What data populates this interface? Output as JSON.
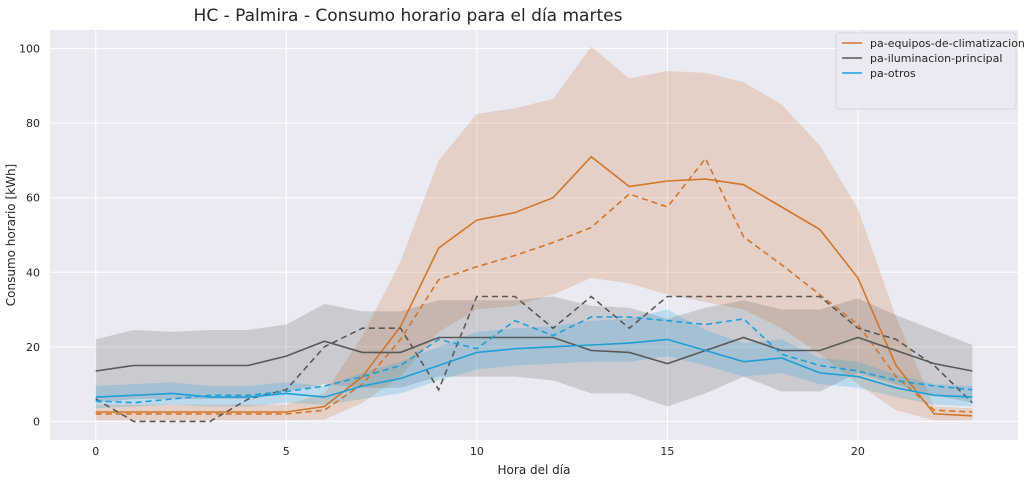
{
  "chart_data": {
    "type": "line",
    "title": "HC - Palmira - Consumo horario para el día martes",
    "xlabel": "Hora del día",
    "ylabel": "Consumo horario [kWh]",
    "xlim": [
      -1.2,
      24.2
    ],
    "ylim": [
      -5,
      105
    ],
    "xticks": [
      0,
      5,
      10,
      15,
      20
    ],
    "yticks": [
      0,
      20,
      40,
      60,
      80,
      100
    ],
    "grid": true,
    "legend_position": "top-right",
    "background": "#eaeaf2",
    "x": [
      0,
      1,
      2,
      3,
      4,
      5,
      6,
      7,
      8,
      9,
      10,
      11,
      12,
      13,
      14,
      15,
      16,
      17,
      18,
      19,
      20,
      21,
      22,
      23
    ],
    "series": [
      {
        "name": "pa-equipos-de-climatizacion",
        "color": "#d2762b",
        "mean": [
          2.5,
          2.5,
          2.5,
          2.5,
          2.5,
          2.5,
          4.0,
          12.0,
          25.5,
          46.5,
          54.0,
          56.0,
          60.0,
          71.0,
          63.0,
          64.5,
          65.0,
          63.5,
          57.5,
          51.5,
          38.5,
          15.0,
          2.0,
          1.5
        ],
        "lower": [
          0.3,
          0.3,
          0.3,
          0.3,
          0.3,
          0.3,
          0.5,
          5.0,
          12.0,
          24.0,
          30.0,
          31.0,
          34.0,
          38.5,
          37.0,
          34.0,
          32.0,
          30.0,
          25.0,
          18.0,
          10.0,
          3.0,
          0.3,
          0.3
        ],
        "upper": [
          4.5,
          4.5,
          4.5,
          4.5,
          4.5,
          4.5,
          7.5,
          23.0,
          43.0,
          70.0,
          82.5,
          84.0,
          86.5,
          100.5,
          92.0,
          94.0,
          93.5,
          91.0,
          85.0,
          74.0,
          57.0,
          28.0,
          4.0,
          3.5
        ],
        "dashed": [
          2.0,
          2.0,
          2.0,
          2.0,
          2.0,
          2.0,
          3.0,
          10.0,
          22.0,
          38.0,
          41.5,
          44.5,
          48.0,
          52.0,
          61.0,
          57.5,
          70.5,
          49.5,
          42.0,
          34.0,
          26.0,
          12.0,
          3.0,
          2.5
        ]
      },
      {
        "name": "pa-iluminacion-principal",
        "color": "#595959",
        "mean": [
          13.5,
          15.0,
          15.0,
          15.0,
          15.0,
          17.5,
          21.5,
          18.5,
          18.5,
          22.5,
          22.5,
          22.5,
          22.5,
          19.0,
          18.5,
          15.5,
          19.0,
          22.5,
          19.0,
          19.0,
          22.5,
          19.0,
          15.5,
          13.5
        ],
        "lower": [
          5.0,
          6.0,
          6.0,
          6.0,
          6.0,
          8.0,
          10.0,
          9.0,
          9.0,
          12.0,
          12.0,
          12.0,
          11.0,
          7.5,
          7.5,
          4.0,
          7.5,
          12.0,
          8.0,
          8.0,
          13.0,
          10.0,
          7.0,
          5.0
        ],
        "upper": [
          22.0,
          24.5,
          24.0,
          24.5,
          24.5,
          26.0,
          31.5,
          29.5,
          29.5,
          32.5,
          32.5,
          32.5,
          33.5,
          31.0,
          30.5,
          27.5,
          30.5,
          32.5,
          30.0,
          30.0,
          33.0,
          28.5,
          24.5,
          20.5
        ],
        "dashed": [
          6.0,
          0.0,
          0.0,
          0.0,
          6.0,
          8.5,
          20.0,
          25.0,
          25.0,
          8.5,
          33.5,
          33.5,
          25.0,
          33.5,
          25.0,
          33.5,
          33.5,
          33.5,
          33.5,
          33.5,
          25.0,
          22.0,
          15.0,
          5.0
        ]
      },
      {
        "name": "pa-otros",
        "color": "#1f9fd8",
        "mean": [
          6.5,
          7.0,
          7.5,
          6.5,
          6.5,
          7.5,
          6.5,
          9.5,
          11.5,
          15.0,
          18.5,
          19.5,
          20.0,
          20.5,
          21.0,
          22.0,
          19.0,
          16.0,
          17.0,
          13.0,
          12.0,
          9.0,
          7.0,
          6.5
        ],
        "lower": [
          3.5,
          4.0,
          4.5,
          4.0,
          4.0,
          5.0,
          4.5,
          6.0,
          7.5,
          11.0,
          14.0,
          15.0,
          15.5,
          16.0,
          16.0,
          17.5,
          15.0,
          12.0,
          13.0,
          10.0,
          9.0,
          6.5,
          4.5,
          4.0
        ],
        "upper": [
          9.5,
          10.0,
          10.5,
          9.5,
          9.5,
          10.5,
          9.5,
          13.0,
          16.0,
          20.0,
          24.0,
          25.0,
          25.5,
          27.0,
          27.5,
          30.0,
          24.5,
          21.0,
          22.0,
          17.0,
          16.0,
          12.5,
          10.0,
          9.5
        ],
        "dashed": [
          5.5,
          5.0,
          6.0,
          7.0,
          7.0,
          8.0,
          9.5,
          12.0,
          15.0,
          22.0,
          19.5,
          27.0,
          23.0,
          28.0,
          28.0,
          27.0,
          26.0,
          27.5,
          18.0,
          15.0,
          13.5,
          11.0,
          9.5,
          8.5
        ]
      }
    ]
  }
}
